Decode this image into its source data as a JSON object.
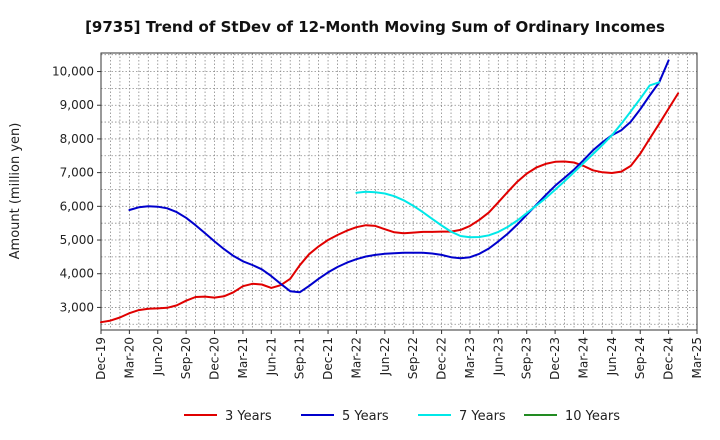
{
  "chart_data": {
    "type": "line",
    "title": "[9735]  Trend of StDev of 12-Month Moving Sum of Ordinary Incomes",
    "xlabel": "",
    "ylabel": "Amount (million yen)",
    "x_ticks": [
      "Dec-19",
      "Mar-20",
      "Jun-20",
      "Sep-20",
      "Dec-20",
      "Mar-21",
      "Jun-21",
      "Sep-21",
      "Dec-21",
      "Mar-22",
      "Jun-22",
      "Sep-22",
      "Dec-22",
      "Mar-23",
      "Jun-23",
      "Sep-23",
      "Dec-23",
      "Mar-24",
      "Jun-24",
      "Sep-24",
      "Dec-24",
      "Mar-25"
    ],
    "y_ticks": [
      3000,
      4000,
      5000,
      6000,
      7000,
      8000,
      9000,
      10000
    ],
    "y_tick_labels": [
      "3,000",
      "4,000",
      "5,000",
      "6,000",
      "7,000",
      "8,000",
      "9,000",
      "10,000"
    ],
    "ylim": [
      2330,
      10550
    ],
    "grid": true,
    "legend_position": "bottom",
    "series": [
      {
        "name": "3 Years",
        "color": "#e00000",
        "start_index": 0,
        "values": [
          2560,
          2610,
          2700,
          2830,
          2920,
          2960,
          2970,
          2990,
          3060,
          3200,
          3310,
          3320,
          3290,
          3330,
          3450,
          3630,
          3700,
          3680,
          3580,
          3660,
          3850,
          4250,
          4580,
          4810,
          5000,
          5150,
          5280,
          5380,
          5440,
          5420,
          5320,
          5230,
          5200,
          5220,
          5240,
          5240,
          5250,
          5250,
          5300,
          5420,
          5600,
          5820,
          6120,
          6430,
          6730,
          6970,
          7150,
          7260,
          7320,
          7330,
          7300,
          7200,
          7070,
          7010,
          6990,
          7030,
          7200,
          7560,
          8010,
          8450,
          8900,
          9350
        ]
      },
      {
        "name": "5 Years",
        "color": "#0000cc",
        "start_index": 3,
        "values": [
          5890,
          5970,
          6000,
          5990,
          5940,
          5830,
          5660,
          5440,
          5200,
          4960,
          4730,
          4530,
          4370,
          4260,
          4130,
          3930,
          3700,
          3480,
          3450,
          3640,
          3850,
          4040,
          4200,
          4330,
          4430,
          4510,
          4560,
          4590,
          4610,
          4620,
          4620,
          4620,
          4600,
          4560,
          4490,
          4460,
          4490,
          4590,
          4750,
          4960,
          5190,
          5460,
          5750,
          6040,
          6330,
          6610,
          6850,
          7090,
          7370,
          7660,
          7900,
          8110,
          8260,
          8510,
          8880,
          9290,
          9680,
          10330
        ]
      },
      {
        "name": "7 Years",
        "color": "#00e8e8",
        "start_index": 27,
        "values": [
          6400,
          6430,
          6420,
          6380,
          6300,
          6180,
          6020,
          5830,
          5630,
          5430,
          5250,
          5120,
          5080,
          5090,
          5140,
          5240,
          5390,
          5580,
          5800,
          6020,
          6240,
          6490,
          6750,
          7010,
          7280,
          7550,
          7820,
          8110,
          8450,
          8820,
          9190,
          9590,
          9680
        ]
      },
      {
        "name": "10 Years",
        "color": "#228b22",
        "start_index": 0,
        "values": []
      }
    ]
  }
}
